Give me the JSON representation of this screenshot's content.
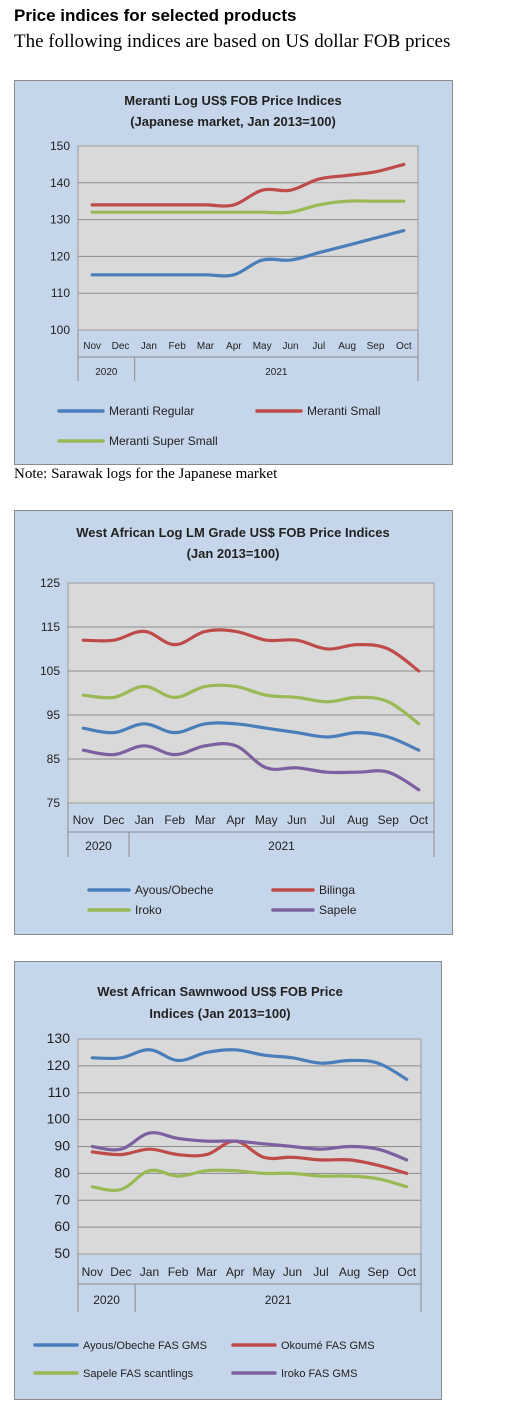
{
  "heading": "Price indices for selected products",
  "subheading": "The following indices are based on US dollar FOB prices",
  "note": "Note: Sarawak logs for the Japanese market",
  "chart_data": [
    {
      "type": "line",
      "title": "Meranti Log US$ FOB Price Indices",
      "subtitle": "(Japanese market, Jan 2013=100)",
      "categories": [
        "Nov",
        "Dec",
        "Jan",
        "Feb",
        "Mar",
        "Apr",
        "May",
        "Jun",
        "Jul",
        "Aug",
        "Sep",
        "Oct"
      ],
      "years": [
        {
          "label": "2020",
          "span": 2
        },
        {
          "label": "2021",
          "span": 10
        }
      ],
      "ylim": [
        100,
        150
      ],
      "yticks": [
        100,
        110,
        120,
        130,
        140,
        150
      ],
      "grid": true,
      "legend": "bottom",
      "series": [
        {
          "name": "Meranti Regular",
          "color": "#4a7ebb",
          "values": [
            115,
            115,
            115,
            115,
            115,
            115,
            119,
            119,
            121,
            123,
            125,
            127
          ]
        },
        {
          "name": "Meranti Small",
          "color": "#be4b48",
          "values": [
            134,
            134,
            134,
            134,
            134,
            134,
            138,
            138,
            141,
            142,
            143,
            145
          ]
        },
        {
          "name": "Meranti Super Small",
          "color": "#98b954",
          "values": [
            132,
            132,
            132,
            132,
            132,
            132,
            132,
            132,
            134,
            135,
            135,
            135
          ]
        }
      ]
    },
    {
      "type": "line",
      "title": "West African Log LM Grade US$ FOB Price Indices",
      "subtitle": "(Jan 2013=100)",
      "categories": [
        "Nov",
        "Dec",
        "Jan",
        "Feb",
        "Mar",
        "Apr",
        "May",
        "Jun",
        "Jul",
        "Aug",
        "Sep",
        "Oct"
      ],
      "years": [
        {
          "label": "2020",
          "span": 2
        },
        {
          "label": "2021",
          "span": 10
        }
      ],
      "ylim": [
        75,
        125
      ],
      "yticks": [
        75,
        85,
        95,
        105,
        115,
        125
      ],
      "grid": true,
      "legend": "bottom",
      "series": [
        {
          "name": "Ayous/Obeche",
          "color": "#4a7ebb",
          "values": [
            92,
            91,
            93,
            91,
            93,
            93,
            92,
            91,
            90,
            91,
            90,
            87
          ]
        },
        {
          "name": "Bilinga",
          "color": "#be4b48",
          "values": [
            112,
            112,
            114,
            111,
            114,
            114,
            112,
            112,
            110,
            111,
            110,
            105
          ]
        },
        {
          "name": "Iroko",
          "color": "#98b954",
          "values": [
            99.5,
            99,
            101.5,
            99,
            101.5,
            101.5,
            99.5,
            99,
            98,
            99,
            98,
            93
          ]
        },
        {
          "name": "Sapele",
          "color": "#7d60a0",
          "values": [
            87,
            86,
            88,
            86,
            88,
            88,
            83,
            83,
            82,
            82,
            82,
            78
          ]
        }
      ]
    },
    {
      "type": "line",
      "title": "West African Sawnwood US$ FOB Price",
      "subtitle": "Indices (Jan 2013=100)",
      "categories": [
        "Nov",
        "Dec",
        "Jan",
        "Feb",
        "Mar",
        "Apr",
        "May",
        "Jun",
        "Jul",
        "Aug",
        "Sep",
        "Oct"
      ],
      "years": [
        {
          "label": "2020",
          "span": 2
        },
        {
          "label": "2021",
          "span": 10
        }
      ],
      "ylim": [
        50,
        130
      ],
      "yticks": [
        50,
        60,
        70,
        80,
        90,
        100,
        110,
        120,
        130
      ],
      "grid": true,
      "legend": "bottom",
      "series": [
        {
          "name": "Ayous/Obeche FAS GMS",
          "color": "#4a7ebb",
          "values": [
            123,
            123,
            126,
            122,
            125,
            126,
            124,
            123,
            121,
            122,
            121,
            115
          ]
        },
        {
          "name": "Okoumé  FAS GMS",
          "color": "#be4b48",
          "values": [
            88,
            87,
            89,
            87,
            87,
            92,
            86,
            86,
            85,
            85,
            83,
            80
          ]
        },
        {
          "name": "Sapele FAS scantlings",
          "color": "#98b954",
          "values": [
            75,
            74,
            81,
            79,
            81,
            81,
            80,
            80,
            79,
            79,
            78,
            75
          ]
        },
        {
          "name": "Iroko FAS GMS",
          "color": "#7d60a0",
          "values": [
            90,
            89,
            95,
            93,
            92,
            92,
            91,
            90,
            89,
            90,
            89,
            85
          ]
        }
      ]
    }
  ]
}
